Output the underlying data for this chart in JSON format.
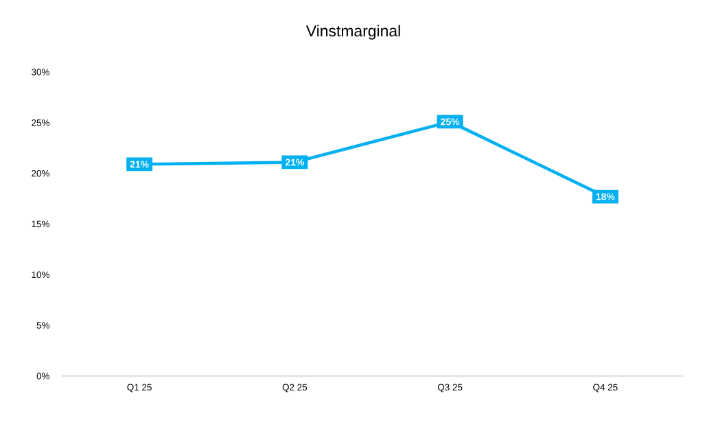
{
  "chart_data": {
    "type": "line",
    "title": "Vinstmarginal",
    "categories": [
      "Q1 25",
      "Q2 25",
      "Q3 25",
      "Q4 25"
    ],
    "values": [
      20.9,
      21.1,
      25.1,
      17.7
    ],
    "value_labels": [
      "21%",
      "21%",
      "25%",
      "18%"
    ],
    "color": "#00b0f0",
    "marker": "square",
    "line_style": "solid",
    "ylim": [
      0,
      30
    ],
    "yticks": [
      {
        "value": 0,
        "label": "0%"
      },
      {
        "value": 5,
        "label": "5%"
      },
      {
        "value": 10,
        "label": "10%"
      },
      {
        "value": 15,
        "label": "15%"
      },
      {
        "value": 20,
        "label": "20%"
      },
      {
        "value": 25,
        "label": "25%"
      },
      {
        "value": 30,
        "label": "30%"
      }
    ]
  }
}
